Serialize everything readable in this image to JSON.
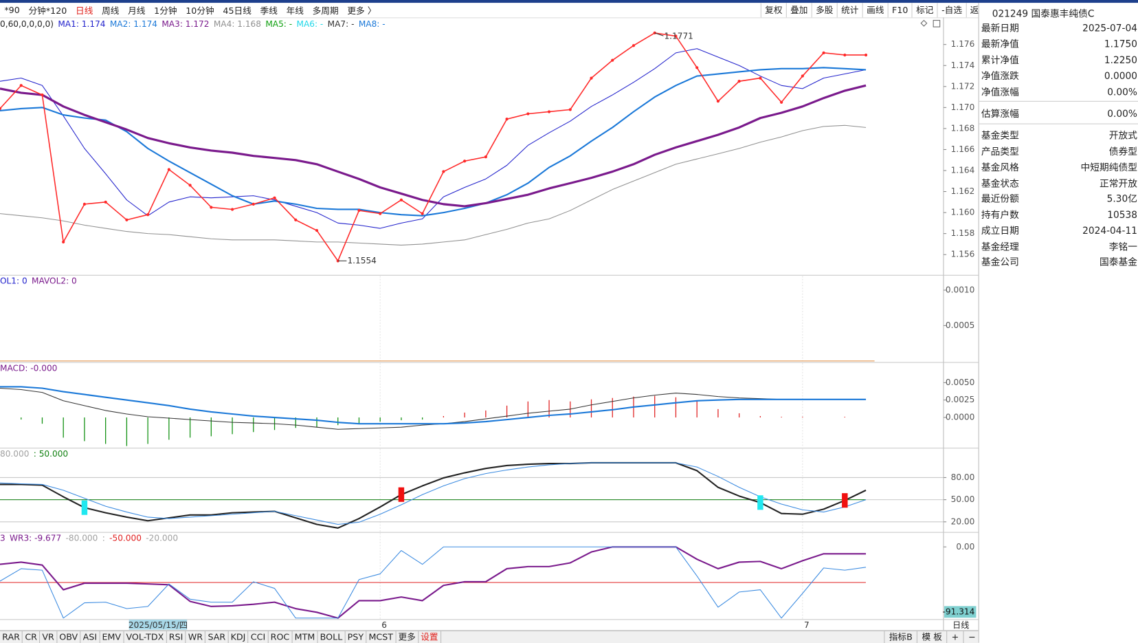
{
  "toolbar": {
    "items": [
      "*90",
      "分钟*120",
      "日线",
      "周线",
      "月线",
      "1分钟",
      "10分钟",
      "45日线",
      "季线",
      "年线",
      "多周期",
      "更多 〉"
    ],
    "active": 2,
    "active_color": "#e0201a",
    "right_items": [
      "复权",
      "叠加",
      "多股",
      "统计",
      "画线",
      "F10",
      "标记",
      "-自选",
      "返回"
    ]
  },
  "fund": {
    "title": "021249 国泰惠丰纯债C",
    "rows": [
      [
        "最新日期",
        "2025-07-04"
      ],
      [
        "最新净值",
        "1.1750"
      ],
      [
        "累计净值",
        "1.2250"
      ],
      [
        "净值涨跌",
        "0.0000"
      ],
      [
        "净值涨幅",
        "0.00%"
      ],
      [
        "估算涨幅",
        "0.00%"
      ],
      [
        "基金类型",
        "开放式"
      ],
      [
        "产品类型",
        "债券型"
      ],
      [
        "基金风格",
        "中短期纯债型"
      ],
      [
        "基金状态",
        "正常开放"
      ],
      [
        "最近份额",
        "5.30亿"
      ],
      [
        "持有户数",
        "10538"
      ],
      [
        "成立日期",
        "2024-04-11"
      ],
      [
        "基金经理",
        "李铭一"
      ],
      [
        "基金公司",
        "国泰基金"
      ]
    ]
  },
  "tabs": {
    "items": [
      "RAR",
      "CR",
      "VR",
      "OBV",
      "ASI",
      "EMV",
      "VOL-TDX",
      "RSI",
      "WR",
      "SAR",
      "KDJ",
      "CCI",
      "ROC",
      "MTM",
      "BOLL",
      "PSY",
      "MCST",
      "更多",
      "设置"
    ],
    "highlight": 18,
    "highlight_color": "#e0201a",
    "right_items": [
      "指标B",
      "模 板",
      "+",
      "−"
    ]
  },
  "axis_period": "日线",
  "chart_data": [
    {
      "type": "line",
      "params_label": "0,60,0,0,0,0)",
      "ylim": [
        1.1541,
        1.1783
      ],
      "yticks": [
        1.176,
        1.174,
        1.172,
        {
          "value": 1.17,
          "label": "1.170"
        },
        1.168,
        1.166,
        1.164,
        1.162,
        {
          "value": 1.16,
          "label": "1.160"
        },
        1.158,
        1.156
      ],
      "price": {
        "color": "#ff2a2a",
        "values": [
          1.1699,
          1.1721,
          1.1712,
          1.1572,
          1.1608,
          1.161,
          1.1593,
          1.1598,
          1.1641,
          1.1626,
          1.1605,
          1.1603,
          1.1608,
          1.1614,
          1.1593,
          1.1583,
          1.1554,
          1.1602,
          1.1599,
          1.1612,
          1.1599,
          1.1639,
          1.1649,
          1.1653,
          1.1689,
          1.1694,
          1.1696,
          1.1698,
          1.1728,
          1.1745,
          1.1759,
          1.1771,
          1.1768,
          1.1738,
          1.1706,
          1.1725,
          1.1728,
          1.1705,
          1.173,
          1.1752,
          1.175,
          1.175
        ]
      },
      "series": [
        {
          "name": "MA1",
          "color": "#2222cc",
          "width": 1,
          "latest": 1.174,
          "values": [
            1.1725,
            1.1728,
            1.1721,
            1.1692,
            1.1661,
            1.1637,
            1.1612,
            1.1597,
            1.161,
            1.1615,
            1.1614,
            1.1615,
            1.1616,
            1.1612,
            1.1606,
            1.16,
            1.159,
            1.1588,
            1.1585,
            1.159,
            1.1594,
            1.1615,
            1.1624,
            1.1632,
            1.1645,
            1.1664,
            1.1676,
            1.1687,
            1.1701,
            1.1712,
            1.1724,
            1.1737,
            1.1752,
            1.1756,
            1.1748,
            1.174,
            1.173,
            1.1721,
            1.1718,
            1.1728,
            1.1732,
            1.1736
          ]
        },
        {
          "name": "MA2",
          "color": "#1a78d8",
          "width": 2,
          "latest": 1.174,
          "values": [
            1.1697,
            1.1699,
            1.17,
            1.1693,
            1.169,
            1.1688,
            1.1677,
            1.1661,
            1.1649,
            1.1638,
            1.1627,
            1.1616,
            1.1608,
            1.1611,
            1.1608,
            1.1604,
            1.1603,
            1.1603,
            1.16,
            1.1598,
            1.1597,
            1.16,
            1.1604,
            1.1609,
            1.1617,
            1.1628,
            1.1643,
            1.1654,
            1.1668,
            1.1681,
            1.1696,
            1.171,
            1.1721,
            1.173,
            1.1732,
            1.1734,
            1.1736,
            1.1737,
            1.1737,
            1.1738,
            1.1737,
            1.1736
          ]
        },
        {
          "name": "MA3",
          "color": "#7a1a8c",
          "width": 3,
          "latest": 1.172,
          "values": [
            1.1718,
            1.1714,
            1.1712,
            1.1701,
            1.1693,
            1.1686,
            1.1679,
            1.1671,
            1.1666,
            1.1662,
            1.1659,
            1.1657,
            1.1654,
            1.1652,
            1.165,
            1.1646,
            1.1639,
            1.1632,
            1.1624,
            1.1618,
            1.1612,
            1.1608,
            1.1606,
            1.1609,
            1.1613,
            1.1617,
            1.1623,
            1.1628,
            1.1633,
            1.1639,
            1.1646,
            1.1655,
            1.1662,
            1.1668,
            1.1674,
            1.1681,
            1.169,
            1.1695,
            1.1701,
            1.1709,
            1.1716,
            1.1721
          ]
        },
        {
          "name": "MA4",
          "color": "#909090",
          "width": 1,
          "latest": 1.168,
          "values": [
            1.1599,
            1.1597,
            1.1595,
            1.1592,
            1.1588,
            1.1585,
            1.1582,
            1.158,
            1.1579,
            1.1577,
            1.1575,
            1.1574,
            1.1574,
            1.1574,
            1.1573,
            1.1572,
            1.1572,
            1.1571,
            1.157,
            1.1569,
            1.157,
            1.1572,
            1.1574,
            1.1579,
            1.1584,
            1.159,
            1.1594,
            1.1602,
            1.1612,
            1.1622,
            1.163,
            1.1638,
            1.1646,
            1.1651,
            1.1656,
            1.1661,
            1.1667,
            1.1672,
            1.1678,
            1.1682,
            1.1683,
            1.1681
          ]
        },
        {
          "name": "MA5",
          "color": "#10a010",
          "latest": "-"
        },
        {
          "name": "MA6",
          "color": "#20d8e8",
          "latest": "-"
        },
        {
          "name": "MA7",
          "color": "#333333",
          "latest": "-"
        },
        {
          "name": "MA8",
          "color": "#1a78d8",
          "latest": "-"
        }
      ]
    },
    {
      "type": "volume",
      "header": [
        {
          "text": "OL1: 0",
          "color": "#2222cc"
        },
        {
          "text": "MAVOL2: 0",
          "color": "#7a1a8c"
        }
      ],
      "ylim": [
        0,
        0.0012
      ],
      "yticks": [
        {
          "value": 0.001,
          "label": "0.0010"
        },
        {
          "value": 0.0005,
          "label": "0.0005"
        }
      ],
      "baseline_color": "#e08a3a"
    },
    {
      "type": "macd",
      "header": [
        {
          "text": "MACD: -0.000",
          "color": "#7a1a8c"
        }
      ],
      "ylim": [
        -0.0043,
        0.0078
      ],
      "yticks": [
        {
          "value": 0.005,
          "label": "0.0050"
        },
        0.0025,
        {
          "value": 0,
          "label": "0.0000"
        }
      ],
      "up_color": "#e02020",
      "down_color": "#109010",
      "values": [
        0,
        -0.0003,
        -0.0009,
        -0.0029,
        -0.0034,
        -0.0038,
        -0.0041,
        -0.0038,
        -0.0032,
        -0.0029,
        -0.0027,
        -0.0024,
        -0.0021,
        -0.0018,
        -0.0015,
        -0.0014,
        -0.0011,
        -0.0009,
        -0.0006,
        -0.0004,
        -0.0003,
        0.0002,
        0.0007,
        0.001,
        0.0017,
        0.0023,
        0.0025,
        0.0023,
        0.0026,
        0.0028,
        0.003,
        0.0031,
        0.0029,
        0.0024,
        0.0012,
        0.0006,
        0.0002,
        0.0001,
        0.0001,
        0,
        0.0001,
        0
      ],
      "series": [
        {
          "color": "#333333",
          "width": 1,
          "values": [
            0.0042,
            0.004,
            0.0036,
            0.0024,
            0.0017,
            0.001,
            0.0005,
            0.0001,
            -0.0001,
            -0.0003,
            -0.0005,
            -0.0007,
            -0.0008,
            -0.0009,
            -0.0011,
            -0.0014,
            -0.0017,
            -0.0016,
            -0.0015,
            -0.0014,
            -0.0011,
            -0.0009,
            -0.0006,
            -0.0002,
            0.0002,
            0.0006,
            0.0009,
            0.0012,
            0.0018,
            0.0023,
            0.0028,
            0.0032,
            0.0035,
            0.0033,
            0.003,
            0.0028,
            0.0027,
            0.0026,
            0.0026,
            0.0026,
            0.0026,
            0.0026
          ]
        },
        {
          "color": "#1a78d8",
          "width": 2,
          "values": [
            0.0044,
            0.0044,
            0.0042,
            0.0037,
            0.0033,
            0.0029,
            0.0025,
            0.0021,
            0.0017,
            0.0012,
            0.0008,
            0.0005,
            0.0002,
            0,
            -0.0002,
            -0.0004,
            -0.0007,
            -0.0009,
            -0.0009,
            -0.0009,
            -0.0009,
            -0.0009,
            -0.0008,
            -0.0006,
            -0.0003,
            0,
            0.0003,
            0.0005,
            0.0008,
            0.0011,
            0.0015,
            0.0018,
            0.0021,
            0.0024,
            0.0025,
            0.0026,
            0.0026,
            0.0026,
            0.0026,
            0.0026,
            0.0026,
            0.0026
          ]
        }
      ]
    },
    {
      "type": "line",
      "header": [
        {
          "text": "80.000",
          "color": "#a0a0a0"
        },
        {
          "text": ": 50.000",
          "color": "#108010"
        }
      ],
      "ylim": [
        6.7,
        118.9
      ],
      "yticks": [
        {
          "value": 80,
          "label": "80.00"
        },
        {
          "value": 50,
          "label": "50.00"
        },
        {
          "value": 20,
          "label": "20.00"
        }
      ],
      "ref_lines": [
        {
          "value": 50,
          "color": "#108010"
        }
      ],
      "series": [
        {
          "color": "#222222",
          "width": 2,
          "values": [
            70.7,
            70.7,
            69.7,
            53.9,
            39.2,
            32.3,
            26.4,
            21.5,
            25.4,
            29.3,
            29.3,
            32.3,
            33.3,
            34.3,
            25.4,
            16.5,
            11.6,
            24.4,
            40.2,
            56.9,
            68.7,
            79.5,
            86.4,
            92.3,
            96.3,
            98,
            99,
            99,
            100,
            100,
            100,
            100,
            100,
            89.4,
            66.7,
            54.9,
            46.1,
            31.3,
            30.3,
            37.2,
            49,
            62.8
          ]
        },
        {
          "color": "#3a8ae0",
          "width": 1,
          "values": [
            72.6,
            71.6,
            70.7,
            62.8,
            52,
            41.1,
            33.3,
            26.4,
            24.4,
            26.4,
            28.4,
            30.3,
            32.3,
            34.3,
            28.4,
            22.4,
            16.5,
            19.5,
            30.3,
            43.1,
            56.9,
            68.7,
            78.5,
            85.4,
            90.3,
            94.3,
            97.2,
            99,
            100,
            100,
            100,
            100,
            100,
            94.3,
            81.5,
            66.7,
            53.9,
            44.1,
            36.2,
            33.3,
            40.2,
            50
          ]
        }
      ],
      "markers": [
        {
          "index": 4,
          "color": "#20e8f0"
        },
        {
          "index": 19,
          "color": "#f01010"
        },
        {
          "index": 36,
          "color": "#20e8f0"
        },
        {
          "index": 40,
          "color": "#f01010"
        }
      ]
    },
    {
      "type": "line",
      "header": [
        {
          "text": "3",
          "color": "#7a1a8c"
        },
        {
          "text": "WR3: -9.677",
          "color": "#7a1a8c"
        },
        {
          "text": "-80.000",
          "color": "#a0a0a0"
        },
        {
          "text": ":",
          "color": "#a0a0a0"
        },
        {
          "text": "-50.000",
          "color": "#e02020"
        },
        {
          "text": "-20.000",
          "color": "#a0a0a0"
        }
      ],
      "ylim": [
        -101,
        19.4
      ],
      "yticks": [
        {
          "value": 0,
          "label": "0.00"
        }
      ],
      "ref_lines": [
        {
          "value": -50,
          "color": "#e02020"
        }
      ],
      "series": [
        {
          "color": "#7a1a8c",
          "width": 2,
          "values": [
            -24.5,
            -21.4,
            -25.5,
            -60.2,
            -51,
            -51,
            -51,
            -52,
            -53.1,
            -76.5,
            -83.7,
            -82.7,
            -80.6,
            -77.6,
            -86.7,
            -91.8,
            -100,
            -75.5,
            -75.5,
            -70.4,
            -75.5,
            -54.1,
            -49,
            -49,
            -30.6,
            -27.6,
            -27.6,
            -22.4,
            -7.1,
            0,
            0,
            0,
            0,
            -17.3,
            -30.6,
            -21.4,
            -20.4,
            -30.6,
            -19.4,
            -9.7,
            -9.7,
            -9.677
          ]
        },
        {
          "color": "#3a8ae0",
          "width": 1,
          "values": [
            -48,
            -30.6,
            -32.7,
            -100,
            -78.6,
            -77.6,
            -86.7,
            -83.7,
            -52,
            -73.5,
            -77.6,
            -77.6,
            -49,
            -58.2,
            -100,
            -100,
            -100,
            -45.9,
            -37.8,
            -5.1,
            -24.5,
            0,
            0,
            0,
            0,
            0,
            0,
            0,
            0,
            0,
            0,
            0,
            0,
            -40.8,
            -84.7,
            -63.3,
            -60.2,
            -100,
            -65.3,
            -29.6,
            -32.7,
            -28.6
          ]
        }
      ],
      "cursor": {
        "index": 7,
        "value": -91.314
      },
      "categories": [
        null,
        null,
        null,
        null,
        null,
        null,
        null,
        "2025/05/15/四",
        null,
        null,
        null,
        null,
        null,
        null,
        null,
        null,
        null,
        null,
        "6",
        null,
        null,
        null,
        null,
        null,
        null,
        null,
        null,
        null,
        null,
        null,
        null,
        null,
        null,
        null,
        null,
        null,
        null,
        null,
        "7",
        null,
        null,
        null
      ]
    }
  ]
}
